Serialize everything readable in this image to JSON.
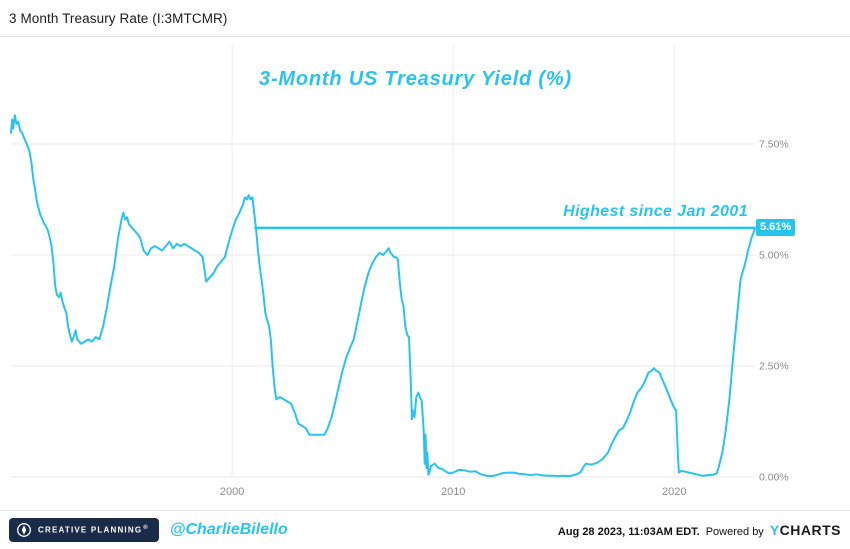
{
  "header": {
    "title": "3 Month Treasury Rate (I:3MTCMR)"
  },
  "chart_data": {
    "type": "line",
    "title": "3-Month US Treasury Yield (%)",
    "annotation": "Highest since Jan 2001",
    "highlight": {
      "value": 5.61,
      "label": "5.61%",
      "start_x": 2001.0
    },
    "accent_color": "#29C3F0",
    "grid": true,
    "legend": "none",
    "xlim": [
      1990,
      2023.65
    ],
    "ylim": [
      0,
      9.73
    ],
    "y_ticks": [
      {
        "value": 0,
        "label": "0.00%"
      },
      {
        "value": 2.5,
        "label": "2.50%"
      },
      {
        "value": 5,
        "label": "5.00%"
      },
      {
        "value": 7.5,
        "label": "7.50%"
      }
    ],
    "x_ticks": [
      {
        "value": 2000,
        "label": "2000"
      },
      {
        "value": 2010,
        "label": "2010"
      },
      {
        "value": 2020,
        "label": "2020"
      }
    ],
    "series": [
      {
        "name": "3 Month Treasury Rate",
        "color": "#29C3F0",
        "points": [
          [
            1990.0,
            7.75
          ],
          [
            1990.05,
            8.05
          ],
          [
            1990.1,
            7.85
          ],
          [
            1990.17,
            8.15
          ],
          [
            1990.25,
            7.95
          ],
          [
            1990.33,
            8.0
          ],
          [
            1990.42,
            7.8
          ],
          [
            1990.5,
            7.75
          ],
          [
            1990.58,
            7.65
          ],
          [
            1990.67,
            7.55
          ],
          [
            1990.75,
            7.45
          ],
          [
            1990.83,
            7.35
          ],
          [
            1990.92,
            7.1
          ],
          [
            1991.0,
            6.75
          ],
          [
            1991.08,
            6.5
          ],
          [
            1991.17,
            6.2
          ],
          [
            1991.25,
            6.05
          ],
          [
            1991.33,
            5.9
          ],
          [
            1991.42,
            5.8
          ],
          [
            1991.5,
            5.7
          ],
          [
            1991.58,
            5.65
          ],
          [
            1991.67,
            5.55
          ],
          [
            1991.75,
            5.4
          ],
          [
            1991.83,
            5.2
          ],
          [
            1991.92,
            4.8
          ],
          [
            1992.0,
            4.3
          ],
          [
            1992.08,
            4.1
          ],
          [
            1992.17,
            4.05
          ],
          [
            1992.25,
            4.15
          ],
          [
            1992.33,
            3.95
          ],
          [
            1992.42,
            3.8
          ],
          [
            1992.5,
            3.7
          ],
          [
            1992.58,
            3.4
          ],
          [
            1992.67,
            3.2
          ],
          [
            1992.75,
            3.05
          ],
          [
            1992.83,
            3.15
          ],
          [
            1992.92,
            3.3
          ],
          [
            1993.0,
            3.1
          ],
          [
            1993.17,
            3.0
          ],
          [
            1993.33,
            3.05
          ],
          [
            1993.5,
            3.1
          ],
          [
            1993.67,
            3.05
          ],
          [
            1993.83,
            3.15
          ],
          [
            1994.0,
            3.1
          ],
          [
            1994.17,
            3.4
          ],
          [
            1994.33,
            3.8
          ],
          [
            1994.5,
            4.3
          ],
          [
            1994.67,
            4.75
          ],
          [
            1994.83,
            5.35
          ],
          [
            1995.0,
            5.8
          ],
          [
            1995.08,
            5.95
          ],
          [
            1995.17,
            5.8
          ],
          [
            1995.25,
            5.85
          ],
          [
            1995.33,
            5.7
          ],
          [
            1995.5,
            5.6
          ],
          [
            1995.67,
            5.5
          ],
          [
            1995.83,
            5.4
          ],
          [
            1996.0,
            5.1
          ],
          [
            1996.17,
            5.0
          ],
          [
            1996.33,
            5.15
          ],
          [
            1996.5,
            5.2
          ],
          [
            1996.67,
            5.15
          ],
          [
            1996.83,
            5.1
          ],
          [
            1997.0,
            5.2
          ],
          [
            1997.17,
            5.3
          ],
          [
            1997.33,
            5.15
          ],
          [
            1997.5,
            5.25
          ],
          [
            1997.67,
            5.2
          ],
          [
            1997.83,
            5.25
          ],
          [
            1998.0,
            5.2
          ],
          [
            1998.17,
            5.15
          ],
          [
            1998.33,
            5.1
          ],
          [
            1998.5,
            5.05
          ],
          [
            1998.67,
            4.95
          ],
          [
            1998.83,
            4.4
          ],
          [
            1999.0,
            4.5
          ],
          [
            1999.17,
            4.6
          ],
          [
            1999.33,
            4.75
          ],
          [
            1999.5,
            4.85
          ],
          [
            1999.67,
            4.95
          ],
          [
            1999.83,
            5.25
          ],
          [
            2000.0,
            5.55
          ],
          [
            2000.17,
            5.8
          ],
          [
            2000.33,
            5.95
          ],
          [
            2000.5,
            6.15
          ],
          [
            2000.58,
            6.3
          ],
          [
            2000.67,
            6.25
          ],
          [
            2000.75,
            6.35
          ],
          [
            2000.83,
            6.25
          ],
          [
            2000.92,
            6.3
          ],
          [
            2001.0,
            5.95
          ],
          [
            2001.08,
            5.6
          ],
          [
            2001.17,
            5.1
          ],
          [
            2001.25,
            4.75
          ],
          [
            2001.33,
            4.45
          ],
          [
            2001.42,
            4.1
          ],
          [
            2001.5,
            3.7
          ],
          [
            2001.58,
            3.55
          ],
          [
            2001.67,
            3.4
          ],
          [
            2001.75,
            3.1
          ],
          [
            2001.83,
            2.5
          ],
          [
            2001.92,
            2.0
          ],
          [
            2002.0,
            1.75
          ],
          [
            2002.17,
            1.8
          ],
          [
            2002.33,
            1.75
          ],
          [
            2002.5,
            1.7
          ],
          [
            2002.67,
            1.65
          ],
          [
            2002.83,
            1.45
          ],
          [
            2003.0,
            1.2
          ],
          [
            2003.17,
            1.15
          ],
          [
            2003.33,
            1.1
          ],
          [
            2003.5,
            0.95
          ],
          [
            2003.67,
            0.95
          ],
          [
            2003.83,
            0.95
          ],
          [
            2004.0,
            0.95
          ],
          [
            2004.17,
            0.95
          ],
          [
            2004.33,
            1.1
          ],
          [
            2004.5,
            1.35
          ],
          [
            2004.67,
            1.7
          ],
          [
            2004.83,
            2.05
          ],
          [
            2005.0,
            2.4
          ],
          [
            2005.17,
            2.7
          ],
          [
            2005.33,
            2.9
          ],
          [
            2005.5,
            3.1
          ],
          [
            2005.67,
            3.5
          ],
          [
            2005.83,
            3.9
          ],
          [
            2006.0,
            4.3
          ],
          [
            2006.17,
            4.6
          ],
          [
            2006.33,
            4.8
          ],
          [
            2006.5,
            4.95
          ],
          [
            2006.67,
            5.05
          ],
          [
            2006.83,
            5.0
          ],
          [
            2007.0,
            5.1
          ],
          [
            2007.08,
            5.15
          ],
          [
            2007.17,
            5.05
          ],
          [
            2007.25,
            5.0
          ],
          [
            2007.33,
            4.95
          ],
          [
            2007.42,
            4.95
          ],
          [
            2007.5,
            4.9
          ],
          [
            2007.58,
            4.4
          ],
          [
            2007.67,
            4.0
          ],
          [
            2007.75,
            3.85
          ],
          [
            2007.83,
            3.4
          ],
          [
            2007.92,
            3.2
          ],
          [
            2008.0,
            3.15
          ],
          [
            2008.08,
            2.2
          ],
          [
            2008.13,
            1.3
          ],
          [
            2008.17,
            1.5
          ],
          [
            2008.25,
            1.35
          ],
          [
            2008.33,
            1.8
          ],
          [
            2008.42,
            1.9
          ],
          [
            2008.5,
            1.8
          ],
          [
            2008.58,
            1.7
          ],
          [
            2008.67,
            1.0
          ],
          [
            2008.71,
            0.3
          ],
          [
            2008.75,
            0.95
          ],
          [
            2008.79,
            0.2
          ],
          [
            2008.83,
            0.55
          ],
          [
            2008.88,
            0.05
          ],
          [
            2008.92,
            0.1
          ],
          [
            2009.0,
            0.25
          ],
          [
            2009.17,
            0.3
          ],
          [
            2009.33,
            0.2
          ],
          [
            2009.5,
            0.18
          ],
          [
            2009.67,
            0.12
          ],
          [
            2009.83,
            0.08
          ],
          [
            2010.0,
            0.1
          ],
          [
            2010.25,
            0.16
          ],
          [
            2010.5,
            0.15
          ],
          [
            2010.75,
            0.12
          ],
          [
            2011.0,
            0.13
          ],
          [
            2011.25,
            0.06
          ],
          [
            2011.5,
            0.03
          ],
          [
            2011.75,
            0.02
          ],
          [
            2012.0,
            0.05
          ],
          [
            2012.25,
            0.09
          ],
          [
            2012.5,
            0.1
          ],
          [
            2012.75,
            0.1
          ],
          [
            2013.0,
            0.07
          ],
          [
            2013.25,
            0.06
          ],
          [
            2013.5,
            0.04
          ],
          [
            2013.75,
            0.06
          ],
          [
            2014.0,
            0.04
          ],
          [
            2014.25,
            0.03
          ],
          [
            2014.5,
            0.03
          ],
          [
            2014.75,
            0.02
          ],
          [
            2015.0,
            0.03
          ],
          [
            2015.25,
            0.02
          ],
          [
            2015.5,
            0.05
          ],
          [
            2015.75,
            0.1
          ],
          [
            2015.92,
            0.25
          ],
          [
            2016.0,
            0.3
          ],
          [
            2016.25,
            0.28
          ],
          [
            2016.5,
            0.32
          ],
          [
            2016.75,
            0.4
          ],
          [
            2017.0,
            0.55
          ],
          [
            2017.17,
            0.75
          ],
          [
            2017.33,
            0.9
          ],
          [
            2017.5,
            1.05
          ],
          [
            2017.67,
            1.1
          ],
          [
            2017.83,
            1.25
          ],
          [
            2018.0,
            1.45
          ],
          [
            2018.17,
            1.7
          ],
          [
            2018.33,
            1.9
          ],
          [
            2018.5,
            2.0
          ],
          [
            2018.67,
            2.15
          ],
          [
            2018.83,
            2.35
          ],
          [
            2019.0,
            2.4
          ],
          [
            2019.08,
            2.45
          ],
          [
            2019.17,
            2.4
          ],
          [
            2019.33,
            2.35
          ],
          [
            2019.5,
            2.15
          ],
          [
            2019.67,
            1.95
          ],
          [
            2019.83,
            1.75
          ],
          [
            2020.0,
            1.55
          ],
          [
            2020.08,
            1.5
          ],
          [
            2020.17,
            0.4
          ],
          [
            2020.21,
            0.1
          ],
          [
            2020.33,
            0.14
          ],
          [
            2020.5,
            0.12
          ],
          [
            2020.67,
            0.1
          ],
          [
            2020.83,
            0.08
          ],
          [
            2021.0,
            0.06
          ],
          [
            2021.25,
            0.03
          ],
          [
            2021.5,
            0.04
          ],
          [
            2021.75,
            0.05
          ],
          [
            2021.92,
            0.08
          ],
          [
            2022.0,
            0.2
          ],
          [
            2022.17,
            0.55
          ],
          [
            2022.33,
            1.05
          ],
          [
            2022.5,
            1.8
          ],
          [
            2022.67,
            2.75
          ],
          [
            2022.83,
            3.6
          ],
          [
            2023.0,
            4.45
          ],
          [
            2023.08,
            4.6
          ],
          [
            2023.17,
            4.75
          ],
          [
            2023.25,
            4.9
          ],
          [
            2023.33,
            5.1
          ],
          [
            2023.42,
            5.25
          ],
          [
            2023.5,
            5.4
          ],
          [
            2023.58,
            5.5
          ],
          [
            2023.65,
            5.61
          ]
        ]
      }
    ]
  },
  "footer": {
    "logo_text": "CREATIVE PLANNING",
    "logo_reg": "®",
    "handle": "@CharlieBilello",
    "timestamp": "Aug 28 2023, 11:03AM EDT.",
    "powered_by": "Powered by",
    "ycharts_y": "Y",
    "ycharts_rest": "CHARTS"
  }
}
